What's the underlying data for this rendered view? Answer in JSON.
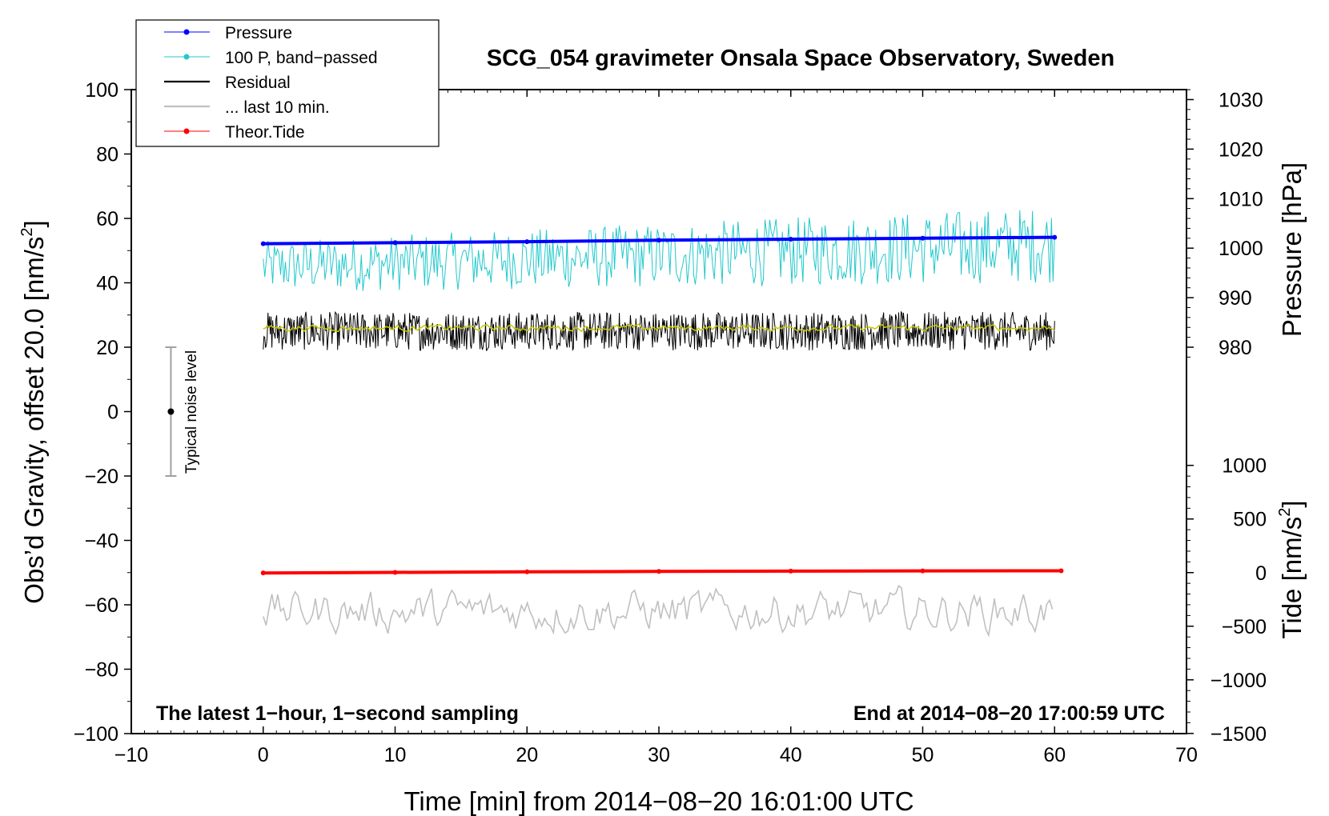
{
  "chart_data": {
    "type": "line",
    "title": "SCG_054 gravimeter Onsala Space Observatory, Sweden",
    "xlabel": "Time [min] from 2014−08−20 16:01:00 UTC",
    "ylabel_left": "Obs’d Gravity, offset 20.0 [nm/s²]",
    "ylabel_left_main": "Obs’d Gravity, offset 20.0 [nm/s",
    "ylabel_left_sup": "2",
    "ylabel_left_end": "]",
    "ylabel_right_pressure": "Pressure [hPa]",
    "ylabel_right_tide_main": "Tide [nm/s",
    "ylabel_right_tide_sup": "2",
    "ylabel_right_tide_end": "]",
    "xlim": [
      -10,
      70
    ],
    "ylim": [
      -100,
      100
    ],
    "x_ticks": [
      -10,
      0,
      10,
      20,
      30,
      40,
      50,
      60,
      70
    ],
    "x_tick_labels": [
      "−10",
      "0",
      "10",
      "20",
      "30",
      "40",
      "50",
      "60",
      "70"
    ],
    "y_ticks": [
      -100,
      -80,
      -60,
      -40,
      -20,
      0,
      20,
      40,
      60,
      80,
      100
    ],
    "y_tick_labels": [
      "−100",
      "−80",
      "−60",
      "−40",
      "−20",
      "0",
      "20",
      "40",
      "60",
      "80",
      "100"
    ],
    "pressure_ticks": [
      980,
      990,
      1000,
      1010,
      1020,
      1030
    ],
    "pressure_tick_labels": [
      "980",
      "990",
      "1000",
      "1010",
      "1020",
      "1030"
    ],
    "pressure_axis_map": {
      "value_at_y0": 980,
      "y_at_value_0": 20,
      "units_per_hpa": 1.538
    },
    "tide_ticks": [
      -1500,
      -1000,
      -500,
      0,
      500,
      1000
    ],
    "tide_tick_labels": [
      "−1500",
      "−1000",
      "−500",
      "0",
      "500",
      "1000"
    ],
    "tide_axis_map": {
      "value_at_y0": 0,
      "y_at_value_0": -50,
      "units_per_nms2": 0.0333
    },
    "annotation_left": "The latest 1−hour, 1−second sampling",
    "annotation_right": "End at 2014−08−20 17:00:59 UTC",
    "noise_bar": {
      "label": "Typical noise level",
      "x": -7,
      "center": 0,
      "low": -20,
      "high": 20
    },
    "legend": [
      {
        "label": "Pressure",
        "color": "#0000ff",
        "marker": true
      },
      {
        "label": "100 P, band−passed",
        "color": "#22c8cc",
        "marker": true
      },
      {
        "label": "Residual",
        "color": "#000000",
        "marker": false
      },
      {
        "label": "... last 10 min.",
        "color": "#c0c0c0",
        "marker": false
      },
      {
        "label": "Theor.Tide",
        "color": "#ff0000",
        "marker": true
      }
    ],
    "series": [
      {
        "name": "Pressure",
        "axis": "pressure_hpa",
        "color": "#0000ff",
        "x": [
          0,
          10,
          20,
          30,
          40,
          50,
          60
        ],
        "values": [
          1000.9,
          1001.1,
          1001.3,
          1001.6,
          1001.8,
          1002.0,
          1002.2
        ]
      },
      {
        "name": "100 P, band−passed",
        "axis": "gravity",
        "color": "#22c8cc",
        "x": [
          0,
          60
        ],
        "baseline": [
          45,
          52
        ],
        "amplitude": [
          8,
          12
        ],
        "noise": true
      },
      {
        "name": "Residual",
        "axis": "gravity",
        "color": "#000000",
        "x": [
          0,
          60
        ],
        "baseline": [
          25,
          25
        ],
        "amplitude": [
          6,
          6
        ],
        "noise": true
      },
      {
        "name": "Residual (smoothed)",
        "axis": "gravity",
        "color": "#c8c800",
        "x": [
          0,
          60
        ],
        "baseline": [
          26,
          26
        ],
        "amplitude": [
          1,
          1
        ],
        "noise": true
      },
      {
        "name": "... last 10 min.",
        "axis": "gravity",
        "color": "#c0c0c0",
        "x": [
          0,
          60
        ],
        "baseline": [
          -62,
          -62
        ],
        "amplitude": [
          7,
          7
        ],
        "noise": true
      },
      {
        "name": "Theor.Tide",
        "axis": "tide_nms2",
        "color": "#ff0000",
        "x": [
          0,
          10,
          20,
          30,
          40,
          50,
          60.5
        ],
        "values": [
          -3,
          2,
          7,
          11,
          14,
          16,
          17
        ]
      }
    ]
  }
}
